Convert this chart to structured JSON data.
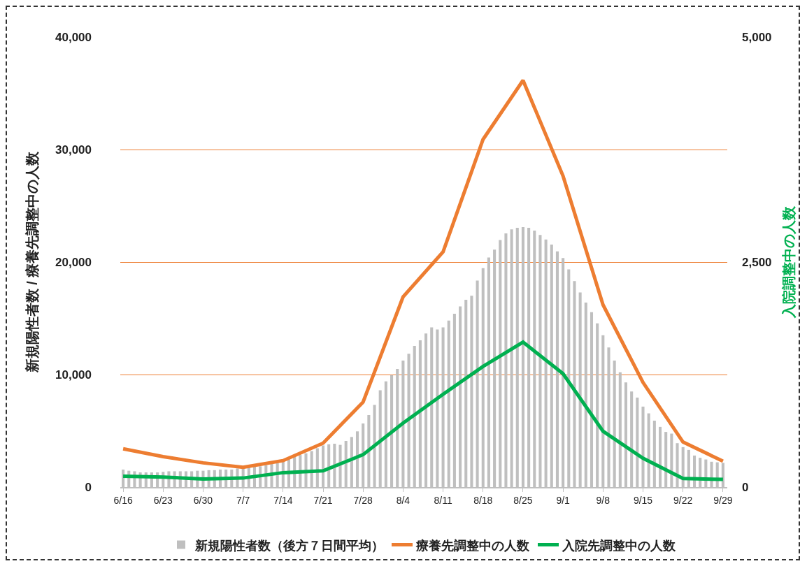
{
  "chart_data": {
    "type": "bar",
    "ylabel": "新規陽性者数 / 療養先調整中の人数",
    "y2label": "入院調整中の人数",
    "x": [
      "--06-16",
      "--06-17",
      "--06-18",
      "--06-19",
      "--06-20",
      "--06-21",
      "--06-22",
      "--06-23",
      "--06-24",
      "--06-25",
      "--06-26",
      "--06-27",
      "--06-28",
      "--06-29",
      "--06-30",
      "--07-01",
      "--07-02",
      "--07-03",
      "--07-04",
      "--07-05",
      "--07-06",
      "--07-07",
      "--07-08",
      "--07-09",
      "--07-10",
      "--07-11",
      "--07-12",
      "--07-13",
      "--07-14",
      "--07-15",
      "--07-16",
      "--07-17",
      "--07-18",
      "--07-19",
      "--07-20",
      "--07-21",
      "--07-22",
      "--07-23",
      "--07-24",
      "--07-25",
      "--07-26",
      "--07-27",
      "--07-28",
      "--07-29",
      "--07-30",
      "--07-31",
      "--08-01",
      "--08-02",
      "--08-03",
      "--08-04",
      "--08-05",
      "--08-06",
      "--08-07",
      "--08-08",
      "--08-09",
      "--08-10",
      "--08-11",
      "--08-12",
      "--08-13",
      "--08-14",
      "--08-15",
      "--08-16",
      "--08-17",
      "--08-18",
      "--08-19",
      "--08-20",
      "--08-21",
      "--08-22",
      "--08-23",
      "--08-24",
      "--08-25",
      "--08-26",
      "--08-27",
      "--08-28",
      "--08-29",
      "--08-30",
      "--08-31",
      "--09-01",
      "--09-02",
      "--09-03",
      "--09-04",
      "--09-05",
      "--09-06",
      "--09-07",
      "--09-08",
      "--09-09",
      "--09-10",
      "--09-11",
      "--09-12",
      "--09-13",
      "--09-14",
      "--09-15",
      "--09-16",
      "--09-17",
      "--09-18",
      "--09-19",
      "--09-20",
      "--09-21",
      "--09-22",
      "--09-23",
      "--09-24",
      "--09-25",
      "--09-26",
      "--09-27",
      "--09-28",
      "--09-29"
    ],
    "series": [
      {
        "name": "新規陽性者数（後方７日間平均）",
        "color": "#bfbfbf",
        "values": [
          1550,
          1450,
          1400,
          1300,
          1300,
          1300,
          1300,
          1350,
          1400,
          1400,
          1400,
          1400,
          1400,
          1450,
          1450,
          1500,
          1500,
          1550,
          1550,
          1550,
          1650,
          1650,
          1750,
          1800,
          1850,
          1950,
          2050,
          2150,
          2250,
          2450,
          2700,
          2850,
          3000,
          3200,
          3450,
          3700,
          3800,
          3850,
          3750,
          4100,
          4450,
          4950,
          5650,
          6400,
          7300,
          8600,
          9400,
          9950,
          10500,
          11250,
          11850,
          12550,
          13050,
          13650,
          14200,
          14000,
          14200,
          14800,
          15400,
          16050,
          16650,
          17000,
          18350,
          19450,
          20400,
          21100,
          21950,
          22550,
          22900,
          23050,
          23100,
          23050,
          22800,
          22400,
          22000,
          21550,
          20950,
          20350,
          19350,
          18300,
          17300,
          16400,
          15550,
          14550,
          13500,
          12400,
          11250,
          10200,
          9300,
          8500,
          7950,
          7150,
          6550,
          5900,
          5350,
          4900,
          4750,
          3900,
          3550,
          3300,
          2800,
          2600,
          2450,
          2250,
          2200,
          2150
        ]
      },
      {
        "name": "療養先調整中の人数",
        "type": "line",
        "color": "#ed7d31",
        "x": [
          "--06-16",
          "--06-23",
          "--06-30",
          "--07-07",
          "--07-14",
          "--07-21",
          "--07-28",
          "--08-04",
          "--08-11",
          "--08-18",
          "--08-25",
          "--09-01",
          "--09-08",
          "--09-15",
          "--09-22",
          "--09-29"
        ],
        "values": [
          3400,
          2700,
          2150,
          1750,
          2350,
          3900,
          7550,
          16900,
          20900,
          30900,
          36150,
          27650,
          16200,
          9300,
          4000,
          2300
        ]
      },
      {
        "name": "入院先調整中の人数",
        "type": "line",
        "axis": "y2",
        "color": "#00b050",
        "x": [
          "--06-16",
          "--06-23",
          "--06-30",
          "--07-07",
          "--07-14",
          "--07-21",
          "--07-28",
          "--08-04",
          "--08-11",
          "--08-18",
          "--08-25",
          "--09-01",
          "--09-08",
          "--09-15",
          "--09-22",
          "--09-29"
        ],
        "values": [
          120,
          110,
          90,
          100,
          160,
          180,
          360,
          710,
          1030,
          1340,
          1610,
          1260,
          620,
          320,
          95,
          85
        ]
      }
    ],
    "xlim": [
      "--06-15T12:00",
      "--09-29T18:00"
    ],
    "xticks": [
      {
        "value": "--06-16",
        "label": "6/16"
      },
      {
        "value": "--06-23",
        "label": "6/23"
      },
      {
        "value": "--06-30",
        "label": "6/30"
      },
      {
        "value": "--07-07",
        "label": "7/7"
      },
      {
        "value": "--07-14",
        "label": "7/14"
      },
      {
        "value": "--07-21",
        "label": "7/21"
      },
      {
        "value": "--07-28",
        "label": "7/28"
      },
      {
        "value": "--08-04",
        "label": "8/4"
      },
      {
        "value": "--08-11",
        "label": "8/11"
      },
      {
        "value": "--08-18",
        "label": "8/18"
      },
      {
        "value": "--08-25",
        "label": "8/25"
      },
      {
        "value": "--09-01",
        "label": "9/1"
      },
      {
        "value": "--09-08",
        "label": "9/8"
      },
      {
        "value": "--09-15",
        "label": "9/15"
      },
      {
        "value": "--09-22",
        "label": "9/22"
      },
      {
        "value": "--09-29",
        "label": "9/29"
      }
    ],
    "ylim": [
      0,
      40000
    ],
    "yticks": [
      0,
      {
        "value": 10000,
        "label": "10,000"
      },
      {
        "value": 20000,
        "label": "20,000"
      },
      {
        "value": 30000,
        "label": "30,000"
      },
      {
        "value": 40000,
        "label": "40,000"
      }
    ],
    "y2lim": [
      0,
      5000
    ],
    "y2ticks": [
      0,
      {
        "value": 2500,
        "label": "2,500"
      },
      {
        "value": 5000,
        "label": "5,000"
      }
    ],
    "grid": "y",
    "legend": "bottom",
    "marker": "none",
    "line_style": "solid"
  }
}
